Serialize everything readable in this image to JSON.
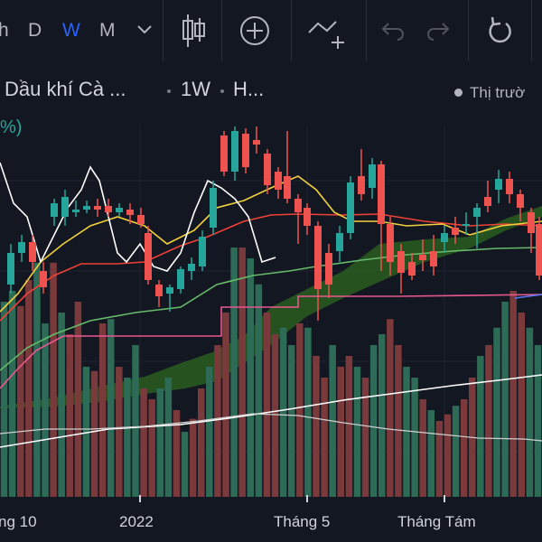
{
  "toolbar": {
    "intervals": [
      "h",
      "D",
      "W",
      "M"
    ],
    "selected_interval": "W"
  },
  "legend": {
    "symbol": "Dầu khí Cà ...",
    "interval": "1W",
    "exchange": "H...",
    "percent": "%)",
    "market_status": "Thị trườ"
  },
  "xaxis": {
    "labels": [
      "ng 10",
      "2022",
      "Tháng 5",
      "Tháng Tám"
    ]
  },
  "colors": {
    "background": "#131722",
    "up": "#26a69a",
    "down": "#ef5350",
    "accent": "#2962ff"
  }
}
